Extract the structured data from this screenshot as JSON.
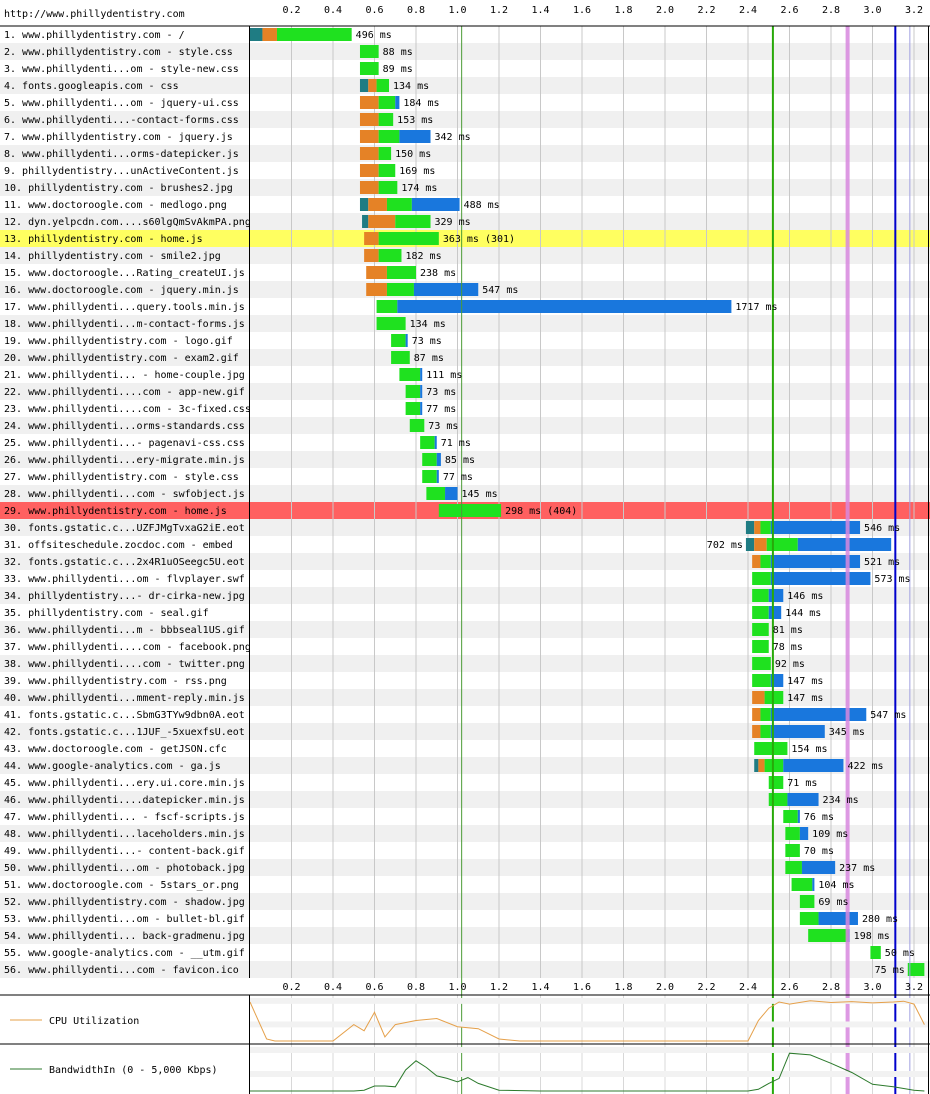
{
  "page_url": "http://www.phillydentistry.com",
  "colors": {
    "dns": "#1f7c83",
    "connect": "#e58226",
    "ttfb": "#1fe11f",
    "download": "#1977dd",
    "highlight_row": "#ffff60",
    "error_row": "#ff6060",
    "start_render": "#28a909",
    "dom_content_loaded": "#d888df",
    "on_load": "#0000cc",
    "document_complete": "#4b9b37",
    "cpu_line": "#e5a04a",
    "bandwidth_line": "#2c7a2c"
  },
  "chart_data": {
    "type": "waterfall",
    "x_unit": "seconds",
    "xlim": [
      0,
      3.25
    ],
    "ticks": [
      "0.2",
      "0.4",
      "0.6",
      "0.8",
      "1.0",
      "1.2",
      "1.4",
      "1.6",
      "1.8",
      "2.0",
      "2.2",
      "2.4",
      "2.6",
      "2.8",
      "3.0",
      "3.2"
    ],
    "markers": [
      {
        "key": "document_complete",
        "x": 1.02
      },
      {
        "key": "start_render",
        "x": 2.52
      },
      {
        "key": "dom_content_loaded",
        "x": 2.88
      },
      {
        "key": "on_load",
        "x": 3.11
      },
      {
        "key": "on_load_end",
        "x": 3.18
      }
    ],
    "requests": [
      {
        "label": "1. www.phillydentistry.com - /",
        "start": 0.0,
        "dns": 0.06,
        "connect": 0.07,
        "ttfb": 0.36,
        "dl": 0.0,
        "time": "496 ms"
      },
      {
        "label": "2. www.phillydentistry.com - style.css",
        "start": 0.53,
        "dns": 0,
        "connect": 0,
        "ttfb": 0.09,
        "dl": 0.0,
        "time": "88 ms"
      },
      {
        "label": "3. www.phillydenti...om - style-new.css",
        "start": 0.53,
        "dns": 0,
        "connect": 0,
        "ttfb": 0.09,
        "dl": 0.0,
        "time": "89 ms"
      },
      {
        "label": "4. fonts.googleapis.com - css",
        "start": 0.53,
        "dns": 0.04,
        "connect": 0.04,
        "ttfb": 0.06,
        "dl": 0.0,
        "time": "134 ms"
      },
      {
        "label": "5. www.phillydenti...om - jquery-ui.css",
        "start": 0.53,
        "dns": 0,
        "connect": 0.09,
        "ttfb": 0.08,
        "dl": 0.02,
        "time": "184 ms"
      },
      {
        "label": "6. www.phillydenti...-contact-forms.css",
        "start": 0.53,
        "dns": 0,
        "connect": 0.09,
        "ttfb": 0.07,
        "dl": 0.0,
        "time": "153 ms"
      },
      {
        "label": "7. www.phillydentistry.com - jquery.js",
        "start": 0.53,
        "dns": 0,
        "connect": 0.09,
        "ttfb": 0.1,
        "dl": 0.15,
        "time": "342 ms"
      },
      {
        "label": "8. www.phillydenti...orms-datepicker.js",
        "start": 0.53,
        "dns": 0,
        "connect": 0.09,
        "ttfb": 0.06,
        "dl": 0.0,
        "time": "150 ms"
      },
      {
        "label": "9. phillydentistry...unActiveContent.js",
        "start": 0.53,
        "dns": 0,
        "connect": 0.09,
        "ttfb": 0.08,
        "dl": 0.0,
        "time": "169 ms"
      },
      {
        "label": "10. phillydentistry.com - brushes2.jpg",
        "start": 0.53,
        "dns": 0,
        "connect": 0.09,
        "ttfb": 0.09,
        "dl": 0.0,
        "time": "174 ms"
      },
      {
        "label": "11. www.doctoroogle.com - medlogo.png",
        "start": 0.53,
        "dns": 0.04,
        "connect": 0.09,
        "ttfb": 0.12,
        "dl": 0.23,
        "time": "488 ms"
      },
      {
        "label": "12. dyn.yelpcdn.com....s60lgQmSvAkmPA.png",
        "start": 0.54,
        "dns": 0.03,
        "connect": 0.13,
        "ttfb": 0.17,
        "dl": 0.0,
        "time": "329 ms"
      },
      {
        "label": "13. phillydentistry.com - home.js",
        "start": 0.55,
        "dns": 0,
        "connect": 0.07,
        "ttfb": 0.29,
        "dl": 0.0,
        "time": "363 ms (301)",
        "row": "highlight"
      },
      {
        "label": "14. phillydentistry.com - smile2.jpg",
        "start": 0.55,
        "dns": 0,
        "connect": 0.07,
        "ttfb": 0.11,
        "dl": 0.0,
        "time": "182 ms"
      },
      {
        "label": "15. www.doctoroogle...Rating_createUI.js",
        "start": 0.56,
        "dns": 0,
        "connect": 0.1,
        "ttfb": 0.14,
        "dl": 0.0,
        "time": "238 ms"
      },
      {
        "label": "16. www.doctoroogle.com - jquery.min.js",
        "start": 0.56,
        "dns": 0,
        "connect": 0.1,
        "ttfb": 0.13,
        "dl": 0.31,
        "time": "547 ms"
      },
      {
        "label": "17. www.phillydenti...query.tools.min.js",
        "start": 0.61,
        "dns": 0,
        "connect": 0,
        "ttfb": 0.1,
        "dl": 1.61,
        "time": "1717 ms"
      },
      {
        "label": "18. www.phillydenti...m-contact-forms.js",
        "start": 0.61,
        "dns": 0,
        "connect": 0,
        "ttfb": 0.14,
        "dl": 0.0,
        "time": "134 ms"
      },
      {
        "label": "19. www.phillydentistry.com - logo.gif",
        "start": 0.68,
        "dns": 0,
        "connect": 0,
        "ttfb": 0.07,
        "dl": 0.01,
        "time": "73 ms"
      },
      {
        "label": "20. www.phillydentistry.com - exam2.gif",
        "start": 0.68,
        "dns": 0,
        "connect": 0,
        "ttfb": 0.09,
        "dl": 0.0,
        "time": "87 ms"
      },
      {
        "label": "21. www.phillydenti... - home-couple.jpg",
        "start": 0.72,
        "dns": 0,
        "connect": 0,
        "ttfb": 0.1,
        "dl": 0.01,
        "time": "111 ms"
      },
      {
        "label": "22. www.phillydenti....com - app-new.gif",
        "start": 0.75,
        "dns": 0,
        "connect": 0,
        "ttfb": 0.07,
        "dl": 0.01,
        "time": "73 ms"
      },
      {
        "label": "23. www.phillydenti....com - 3c-fixed.css",
        "start": 0.75,
        "dns": 0,
        "connect": 0,
        "ttfb": 0.07,
        "dl": 0.01,
        "time": "77 ms"
      },
      {
        "label": "24. www.phillydenti...orms-standards.css",
        "start": 0.77,
        "dns": 0,
        "connect": 0,
        "ttfb": 0.07,
        "dl": 0.0,
        "time": "73 ms"
      },
      {
        "label": "25. www.phillydenti...- pagenavi-css.css",
        "start": 0.82,
        "dns": 0,
        "connect": 0,
        "ttfb": 0.07,
        "dl": 0.01,
        "time": "71 ms"
      },
      {
        "label": "26. www.phillydenti...ery-migrate.min.js",
        "start": 0.83,
        "dns": 0,
        "connect": 0,
        "ttfb": 0.07,
        "dl": 0.02,
        "time": "85 ms"
      },
      {
        "label": "27. www.phillydentistry.com - style.css",
        "start": 0.83,
        "dns": 0,
        "connect": 0,
        "ttfb": 0.07,
        "dl": 0.01,
        "time": "77 ms"
      },
      {
        "label": "28. www.phillydenti...com - swfobject.js",
        "start": 0.85,
        "dns": 0,
        "connect": 0,
        "ttfb": 0.09,
        "dl": 0.06,
        "time": "145 ms"
      },
      {
        "label": "29. www.phillydentistry.com - home.js",
        "start": 0.91,
        "dns": 0,
        "connect": 0,
        "ttfb": 0.3,
        "dl": 0.0,
        "time": "298 ms (404)",
        "row": "error"
      },
      {
        "label": "30. fonts.gstatic.c...UZFJMgTvxaG2iE.eot",
        "start": 2.39,
        "dns": 0.04,
        "connect": 0.03,
        "ttfb": 0.05,
        "dl": 0.43,
        "time": "546 ms"
      },
      {
        "label": "31. offsiteschedule.zocdoc.com - embed",
        "start": 2.39,
        "dns": 0.04,
        "connect": 0.06,
        "ttfb": 0.15,
        "dl": 0.45,
        "time": "702 ms",
        "label_left": true
      },
      {
        "label": "32. fonts.gstatic.c...2x4R1uOSeegc5U.eot",
        "start": 2.42,
        "dns": 0,
        "connect": 0.04,
        "ttfb": 0.05,
        "dl": 0.43,
        "time": "521 ms"
      },
      {
        "label": "33. www.phillydenti...om - flvplayer.swf",
        "start": 2.42,
        "dns": 0,
        "connect": 0,
        "ttfb": 0.09,
        "dl": 0.48,
        "time": "573 ms"
      },
      {
        "label": "34. phillydentistry...- dr-cirka-new.jpg",
        "start": 2.42,
        "dns": 0,
        "connect": 0,
        "ttfb": 0.08,
        "dl": 0.07,
        "time": "146 ms"
      },
      {
        "label": "35. phillydentistry.com - seal.gif",
        "start": 2.42,
        "dns": 0,
        "connect": 0,
        "ttfb": 0.08,
        "dl": 0.06,
        "time": "144 ms"
      },
      {
        "label": "36. www.phillydenti...m - bbbseal1US.gif",
        "start": 2.42,
        "dns": 0,
        "connect": 0,
        "ttfb": 0.08,
        "dl": 0.0,
        "time": "81 ms"
      },
      {
        "label": "37. www.phillydenti....com - facebook.png",
        "start": 2.42,
        "dns": 0,
        "connect": 0,
        "ttfb": 0.08,
        "dl": 0.0,
        "time": "78 ms"
      },
      {
        "label": "38. www.phillydenti....com - twitter.png",
        "start": 2.42,
        "dns": 0,
        "connect": 0,
        "ttfb": 0.09,
        "dl": 0.0,
        "time": "92 ms"
      },
      {
        "label": "39. www.phillydentistry.com - rss.png",
        "start": 2.42,
        "dns": 0,
        "connect": 0,
        "ttfb": 0.09,
        "dl": 0.06,
        "time": "147 ms"
      },
      {
        "label": "40. www.phillydenti...mment-reply.min.js",
        "start": 2.42,
        "dns": 0,
        "connect": 0.06,
        "ttfb": 0.09,
        "dl": 0.0,
        "time": "147 ms"
      },
      {
        "label": "41. fonts.gstatic.c...SbmG3TYw9dbn0A.eot",
        "start": 2.42,
        "dns": 0,
        "connect": 0.04,
        "ttfb": 0.05,
        "dl": 0.46,
        "time": "547 ms"
      },
      {
        "label": "42. fonts.gstatic.c...1JUF_-5xuexfsU.eot",
        "start": 2.42,
        "dns": 0,
        "connect": 0.04,
        "ttfb": 0.05,
        "dl": 0.26,
        "time": "345 ms"
      },
      {
        "label": "43. www.doctoroogle.com - getJSON.cfc",
        "start": 2.43,
        "dns": 0,
        "connect": 0,
        "ttfb": 0.16,
        "dl": 0.0,
        "time": "154 ms"
      },
      {
        "label": "44. www.google-analytics.com - ga.js",
        "start": 2.43,
        "dns": 0.02,
        "connect": 0.03,
        "ttfb": 0.09,
        "dl": 0.29,
        "time": "422 ms"
      },
      {
        "label": "45. www.phillydenti...ery.ui.core.min.js",
        "start": 2.5,
        "dns": 0,
        "connect": 0,
        "ttfb": 0.07,
        "dl": 0.0,
        "time": "71 ms"
      },
      {
        "label": "46. www.phillydenti....datepicker.min.js",
        "start": 2.5,
        "dns": 0,
        "connect": 0,
        "ttfb": 0.09,
        "dl": 0.15,
        "time": "234 ms"
      },
      {
        "label": "47. www.phillydenti... - fscf-scripts.js",
        "start": 2.57,
        "dns": 0,
        "connect": 0,
        "ttfb": 0.07,
        "dl": 0.01,
        "time": "76 ms"
      },
      {
        "label": "48. www.phillydenti...laceholders.min.js",
        "start": 2.58,
        "dns": 0,
        "connect": 0,
        "ttfb": 0.07,
        "dl": 0.04,
        "time": "109 ms"
      },
      {
        "label": "49. www.phillydenti...- content-back.gif",
        "start": 2.58,
        "dns": 0,
        "connect": 0,
        "ttfb": 0.07,
        "dl": 0.0,
        "time": "70 ms"
      },
      {
        "label": "50. www.phillydenti...om - photoback.jpg",
        "start": 2.58,
        "dns": 0,
        "connect": 0,
        "ttfb": 0.08,
        "dl": 0.16,
        "time": "237 ms"
      },
      {
        "label": "51. www.doctoroogle.com - 5stars_or.png",
        "start": 2.61,
        "dns": 0,
        "connect": 0,
        "ttfb": 0.1,
        "dl": 0.01,
        "time": "104 ms"
      },
      {
        "label": "52. www.phillydentistry.com - shadow.jpg",
        "start": 2.65,
        "dns": 0,
        "connect": 0,
        "ttfb": 0.07,
        "dl": 0.0,
        "time": "69 ms"
      },
      {
        "label": "53. www.phillydenti...om - bullet-bl.gif",
        "start": 2.65,
        "dns": 0,
        "connect": 0,
        "ttfb": 0.09,
        "dl": 0.19,
        "time": "280 ms"
      },
      {
        "label": "54. www.phillydenti... back-gradmenu.jpg",
        "start": 2.69,
        "dns": 0,
        "connect": 0,
        "ttfb": 0.19,
        "dl": 0.01,
        "time": "198 ms"
      },
      {
        "label": "55. www.google-analytics.com - __utm.gif",
        "start": 2.99,
        "dns": 0,
        "connect": 0,
        "ttfb": 0.05,
        "dl": 0.0,
        "time": "50 ms"
      },
      {
        "label": "56. www.phillydenti...com - favicon.ico",
        "start": 3.17,
        "dns": 0,
        "connect": 0,
        "ttfb": 0.08,
        "dl": 0.0,
        "time": "75 ms",
        "label_left": true
      }
    ],
    "cpu": {
      "label": "CPU Utilization",
      "ylim": [
        0,
        100
      ],
      "x": [
        0,
        0.08,
        0.12,
        0.2,
        0.3,
        0.4,
        0.5,
        0.55,
        0.6,
        0.65,
        0.7,
        0.8,
        0.9,
        1.0,
        1.1,
        1.2,
        1.3,
        1.4,
        1.5,
        1.6,
        1.7,
        1.8,
        1.9,
        2.0,
        2.1,
        2.2,
        2.3,
        2.4,
        2.45,
        2.5,
        2.55,
        2.6,
        2.7,
        2.8,
        2.9,
        3.0,
        3.1,
        3.15,
        3.2,
        3.25
      ],
      "values": [
        95,
        5,
        0,
        0,
        0,
        0,
        40,
        25,
        70,
        10,
        40,
        50,
        55,
        35,
        30,
        5,
        0,
        0,
        0,
        0,
        0,
        0,
        0,
        0,
        0,
        0,
        0,
        0,
        50,
        80,
        95,
        90,
        98,
        94,
        96,
        93,
        95,
        97,
        90,
        40
      ]
    },
    "bandwidth": {
      "label": "BandwidthIn (0 - 5,000 Kbps)",
      "ylim": [
        0,
        5000
      ],
      "x": [
        0,
        0.2,
        0.4,
        0.5,
        0.55,
        0.6,
        0.65,
        0.7,
        0.75,
        0.8,
        0.85,
        0.9,
        0.95,
        1.0,
        1.05,
        1.1,
        1.2,
        1.4,
        2.2,
        2.4,
        2.45,
        2.5,
        2.55,
        2.6,
        2.7,
        2.8,
        2.9,
        3.0,
        3.1,
        3.2,
        3.25
      ],
      "values": [
        0,
        0,
        0,
        0,
        100,
        600,
        600,
        500,
        2500,
        3600,
        2800,
        1800,
        1500,
        1100,
        1600,
        900,
        100,
        0,
        0,
        0,
        200,
        900,
        1500,
        4500,
        4300,
        3300,
        2200,
        800,
        500,
        100,
        0
      ]
    }
  }
}
